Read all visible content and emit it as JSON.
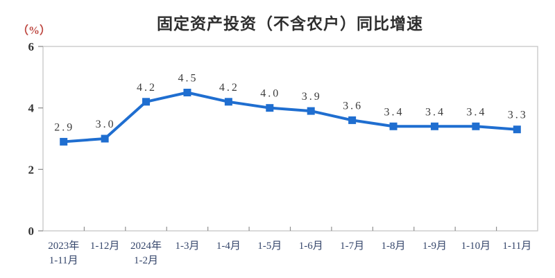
{
  "page": {
    "title": "固定资产投资（不含农户）同比增速",
    "unit_label": "（%）"
  },
  "colors": {
    "line": "#1f6ed0",
    "marker": "#1f6ed0",
    "title_text": "#2e2e2e",
    "unit_text": "#bf4b44",
    "frame": "#c6c6c6",
    "tick": "#8f8f8f",
    "y_tick_label": "#333333",
    "data_label": "#3c3c3c",
    "x_label": "#35466b"
  },
  "chart_data": {
    "type": "line",
    "title": "固定资产投资（不含农户）同比增速",
    "ylabel": "（%）",
    "xlabel": "",
    "categories": [
      "2023年\n1-11月",
      "1-12月",
      "2024年\n1-2月",
      "1-3月",
      "1-4月",
      "1-5月",
      "1-6月",
      "1-7月",
      "1-8月",
      "1-9月",
      "1-10月",
      "1-11月"
    ],
    "values": [
      2.9,
      3.0,
      4.2,
      4.5,
      4.2,
      4.0,
      3.9,
      3.6,
      3.4,
      3.4,
      3.4,
      3.3
    ],
    "data_labels": [
      "2.9",
      "3.0",
      "4.2",
      "4.5",
      "4.2",
      "4.0",
      "3.9",
      "3.6",
      "3.4",
      "3.4",
      "3.4",
      "3.3"
    ],
    "ylim": [
      0,
      6
    ],
    "yticks": [
      0,
      2,
      4,
      6
    ],
    "grid": false,
    "legend": "none",
    "marker": "square"
  }
}
